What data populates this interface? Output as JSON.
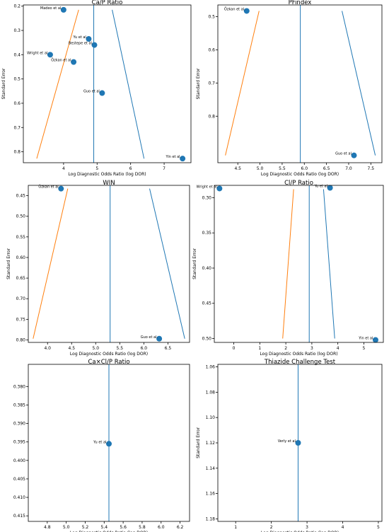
{
  "colors": {
    "point": "#1f77b4",
    "line_blue": "#1f77b4",
    "line_orange": "#ff7f0e",
    "axis": "#000000"
  },
  "chart_data": [
    {
      "type": "scatter",
      "title": "Ca/P Ratio",
      "xlabel": "Log Diagnostic Odds Ratio (log DOR)",
      "ylabel": "Standard Error",
      "y_inverted": true,
      "xlim": [
        2.8,
        7.8
      ],
      "ylim": [
        0.195,
        0.845
      ],
      "xticks": [
        4,
        5,
        6,
        7
      ],
      "xtick_labels": [
        "4",
        "5",
        "6",
        "7"
      ],
      "yticks": [
        0.2,
        0.3,
        0.4,
        0.5,
        0.6,
        0.7,
        0.8
      ],
      "ytick_labels": [
        "0.2",
        "0.3",
        "0.4",
        "0.5",
        "0.6",
        "0.7",
        "0.8"
      ],
      "points": [
        {
          "label": "Madeo et al.",
          "x": 4.0,
          "y": 0.215
        },
        {
          "label": "Yu et al.",
          "x": 4.75,
          "y": 0.335
        },
        {
          "label": "Bestepe et al.",
          "x": 4.92,
          "y": 0.36
        },
        {
          "label": "Wright et al.",
          "x": 3.6,
          "y": 0.4
        },
        {
          "label": "Özkan et al.",
          "x": 4.3,
          "y": 0.43
        },
        {
          "label": "Guo et al.",
          "x": 5.15,
          "y": 0.558
        },
        {
          "label": "Yin et al.",
          "x": 7.55,
          "y": 0.828
        }
      ],
      "vline_x": 4.9,
      "funnel": {
        "left": [
          [
            4.45,
            0.215
          ],
          [
            3.2,
            0.828
          ]
        ],
        "right": [
          [
            5.45,
            0.215
          ],
          [
            6.4,
            0.828
          ]
        ]
      }
    },
    {
      "type": "scatter",
      "title": "PFindex",
      "xlabel": "Log Diagnostic Odds Ratio (log DOR)",
      "ylabel": "Standard Error",
      "y_inverted": true,
      "xlim": [
        4.05,
        7.75
      ],
      "ylim": [
        0.465,
        0.94
      ],
      "xticks": [
        4.5,
        5.0,
        5.5,
        6.0,
        6.5,
        7.0,
        7.5
      ],
      "xtick_labels": [
        "4.5",
        "5.0",
        "5.5",
        "6.0",
        "6.5",
        "7.0",
        "7.5"
      ],
      "yticks": [
        0.5,
        0.6,
        0.7,
        0.8
      ],
      "ytick_labels": [
        "0.5",
        "0.6",
        "0.7",
        "0.8"
      ],
      "points": [
        {
          "label": "Özkan et al.",
          "x": 4.7,
          "y": 0.483
        },
        {
          "label": "Guo et al.",
          "x": 7.12,
          "y": 0.918
        }
      ],
      "vline_x": 5.91,
      "funnel": {
        "left": [
          [
            4.98,
            0.483
          ],
          [
            4.22,
            0.918
          ]
        ],
        "right": [
          [
            6.85,
            0.483
          ],
          [
            7.6,
            0.918
          ]
        ]
      }
    },
    {
      "type": "scatter",
      "title": "WIN",
      "xlabel": "Log Diagnostic Odds Ratio (log DOR)",
      "ylabel": "Standard Error",
      "y_inverted": true,
      "xlim": [
        3.6,
        6.95
      ],
      "ylim": [
        0.425,
        0.806
      ],
      "xticks": [
        4.0,
        4.5,
        5.0,
        5.5,
        6.0,
        6.5
      ],
      "xtick_labels": [
        "4.0",
        "4.5",
        "5.0",
        "5.5",
        "6.0",
        "6.5"
      ],
      "yticks": [
        0.45,
        0.5,
        0.55,
        0.6,
        0.65,
        0.7,
        0.75,
        0.8
      ],
      "ytick_labels": [
        "0.45",
        "0.50",
        "0.55",
        "0.60",
        "0.65",
        "0.70",
        "0.75",
        "0.80"
      ],
      "points": [
        {
          "label": "Özkan et al.",
          "x": 4.28,
          "y": 0.433
        },
        {
          "label": "Guo et al.",
          "x": 6.32,
          "y": 0.797
        }
      ],
      "vline_x": 5.3,
      "funnel": {
        "left": [
          [
            4.42,
            0.433
          ],
          [
            3.7,
            0.797
          ]
        ],
        "right": [
          [
            6.12,
            0.433
          ],
          [
            6.85,
            0.797
          ]
        ]
      }
    },
    {
      "type": "scatter",
      "title": "Cl/P Ratio",
      "xlabel": "Log Diagnostic Odds Ratio (log DOR)",
      "ylabel": "Standard Error",
      "y_inverted": true,
      "xlim": [
        -0.75,
        5.75
      ],
      "ylim": [
        0.2825,
        0.5055
      ],
      "xticks": [
        0,
        1,
        2,
        3,
        4,
        5
      ],
      "xtick_labels": [
        "0",
        "1",
        "2",
        "3",
        "4",
        "5"
      ],
      "yticks": [
        0.3,
        0.35,
        0.4,
        0.45,
        0.5
      ],
      "ytick_labels": [
        "0.30",
        "0.35",
        "0.40",
        "0.45",
        "0.50"
      ],
      "points": [
        {
          "label": "Wright et al.",
          "x": -0.55,
          "y": 0.287
        },
        {
          "label": "Yu et al.",
          "x": 3.7,
          "y": 0.286
        },
        {
          "label": "Yin et al.",
          "x": 5.45,
          "y": 0.502
        }
      ],
      "vline_x": 2.9,
      "funnel": {
        "left": [
          [
            2.3,
            0.288
          ],
          [
            1.88,
            0.5
          ]
        ],
        "right": [
          [
            3.45,
            0.288
          ],
          [
            3.88,
            0.5
          ]
        ]
      }
    },
    {
      "type": "scatter",
      "title": "Ca×Cl/P Ratio",
      "xlabel": "Log Diagnostic Odds Ratio (log DOR)",
      "ylabel": "",
      "y_inverted": true,
      "xlim": [
        4.6,
        6.3
      ],
      "ylim": [
        0.374,
        0.4165
      ],
      "xticks": [
        4.8,
        5.0,
        5.2,
        5.4,
        5.6,
        5.8,
        6.0,
        6.2
      ],
      "xtick_labels": [
        "4.8",
        "5.0",
        "5.2",
        "5.4",
        "5.6",
        "5.8",
        "6.0",
        "6.2"
      ],
      "yticks": [
        0.38,
        0.385,
        0.39,
        0.395,
        0.4,
        0.405,
        0.41,
        0.415
      ],
      "ytick_labels": [
        "0.380",
        "0.385",
        "0.390",
        "0.395",
        "0.400",
        "0.405",
        "0.410",
        "0.415"
      ],
      "points": [
        {
          "label": "Yu et al.",
          "x": 5.45,
          "y": 0.3955
        }
      ],
      "vline_x": 5.45,
      "funnel": null
    },
    {
      "type": "scatter",
      "title": "Thiazide Challenge Test",
      "xlabel": "Log Diagnostic Odds Ratio (log DOR)",
      "ylabel": "Standard Error",
      "y_inverted": true,
      "xlim": [
        0.5,
        5.1
      ],
      "ylim": [
        1.058,
        1.182
      ],
      "xticks": [
        1,
        2,
        3,
        4,
        5
      ],
      "xtick_labels": [
        "1",
        "2",
        "3",
        "4",
        "5"
      ],
      "yticks": [
        1.06,
        1.08,
        1.1,
        1.12,
        1.14,
        1.16,
        1.18
      ],
      "ytick_labels": [
        "1.06",
        "1.08",
        "1.10",
        "1.12",
        "1.14",
        "1.16",
        "1.18"
      ],
      "points": [
        {
          "label": "Verly et al.",
          "x": 2.75,
          "y": 1.12
        }
      ],
      "vline_x": 2.75,
      "funnel": null
    }
  ]
}
